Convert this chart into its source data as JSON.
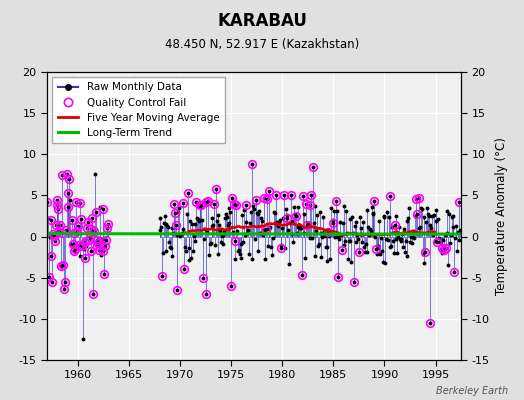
{
  "title": "KARABAU",
  "subtitle": "48.450 N, 52.917 E (Kazakhstan)",
  "ylabel_right": "Temperature Anomaly (°C)",
  "watermark": "Berkeley Earth",
  "xlim": [
    1957.0,
    1997.5
  ],
  "ylim": [
    -15,
    20
  ],
  "yticks": [
    -15,
    -10,
    -5,
    0,
    5,
    10,
    15,
    20
  ],
  "xticks": [
    1960,
    1965,
    1970,
    1975,
    1980,
    1985,
    1990,
    1995
  ],
  "outer_bg": "#e0e0e0",
  "plot_bg": "#f0f0f0",
  "line_color": "#3333cc",
  "ma_color": "#dd0000",
  "trend_color": "#00bb00",
  "qc_color": "#ff00ff",
  "legend_items": [
    "Raw Monthly Data",
    "Quality Control Fail",
    "Five Year Moving Average",
    "Long-Term Trend"
  ],
  "seed": 42,
  "start_year": 1957.0,
  "end_year": 1997.5
}
